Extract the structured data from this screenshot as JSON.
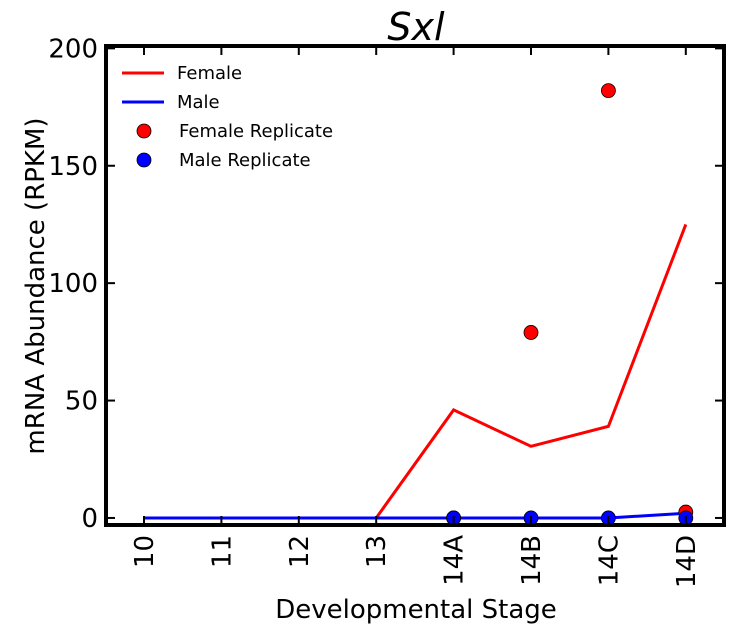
{
  "chart_data": {
    "type": "line",
    "title": "Sxl",
    "xlabel": "Developmental Stage",
    "ylabel": "mRNA Abundance (RPKM)",
    "categories": [
      "10",
      "11",
      "12",
      "13",
      "14A",
      "14B",
      "14C",
      "14D"
    ],
    "ylim": [
      -3,
      201
    ],
    "yticks": [
      0,
      50,
      100,
      150,
      200
    ],
    "grid": false,
    "legend_position": "top-left",
    "series": [
      {
        "name": "Female",
        "kind": "line",
        "color": "#ff0000",
        "values": [
          0,
          0,
          0,
          0,
          46,
          30.5,
          39,
          125
        ]
      },
      {
        "name": "Male",
        "kind": "line",
        "color": "#0000ff",
        "values": [
          0,
          0,
          0,
          0,
          0,
          0,
          0,
          2
        ]
      },
      {
        "name": "Female Replicate",
        "kind": "scatter",
        "color": "#ff0000",
        "points": [
          {
            "x": "14A",
            "y": 0
          },
          {
            "x": "14B",
            "y": 79
          },
          {
            "x": "14C",
            "y": 182
          },
          {
            "x": "14D",
            "y": 2.5
          }
        ]
      },
      {
        "name": "Male Replicate",
        "kind": "scatter",
        "color": "#0000ff",
        "points": [
          {
            "x": "14A",
            "y": 0
          },
          {
            "x": "14B",
            "y": 0
          },
          {
            "x": "14C",
            "y": 0
          },
          {
            "x": "14D",
            "y": 0
          }
        ]
      }
    ]
  }
}
